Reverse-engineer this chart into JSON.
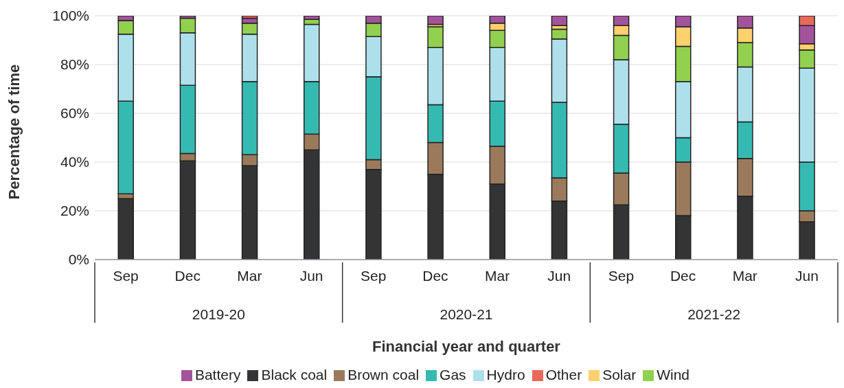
{
  "chart_data": {
    "type": "bar",
    "stacked": true,
    "xlabel": "Financial year and quarter",
    "ylabel": "Percentage of time",
    "categories": [
      "Sep",
      "Dec",
      "Mar",
      "Jun",
      "Sep",
      "Dec",
      "Mar",
      "Jun",
      "Sep",
      "Dec",
      "Mar",
      "Jun"
    ],
    "annotations": [
      "2019-20",
      "2020-21",
      "2021-22"
    ],
    "series": [
      {
        "name": "Black coal",
        "color": "#333436",
        "values": [
          25,
          40.5,
          38.5,
          45,
          37,
          35,
          31,
          24,
          22.5,
          18,
          26,
          15.5
        ]
      },
      {
        "name": "Brown coal",
        "color": "#9b7a5c",
        "values": [
          2,
          3,
          4.5,
          6.5,
          4,
          13,
          15.5,
          9.5,
          13,
          22,
          15.5,
          4.5
        ]
      },
      {
        "name": "Gas",
        "color": "#35bab2",
        "values": [
          38,
          28,
          30,
          21.5,
          34,
          15.5,
          18.5,
          31,
          20,
          10,
          15,
          20
        ]
      },
      {
        "name": "Hydro",
        "color": "#aee0ec",
        "values": [
          27.5,
          21.5,
          19.5,
          23.5,
          16.5,
          23.5,
          22,
          26,
          26.5,
          23,
          22.5,
          38.5
        ]
      },
      {
        "name": "Wind",
        "color": "#92d050",
        "values": [
          5.5,
          6,
          4.5,
          2,
          5.5,
          8.5,
          7,
          4,
          10,
          14.5,
          10,
          7.5
        ]
      },
      {
        "name": "Solar",
        "color": "#ffd06e",
        "values": [
          0,
          0,
          0,
          0,
          0,
          1,
          3,
          1.5,
          4,
          8,
          6,
          2.5
        ]
      },
      {
        "name": "Battery",
        "color": "#a3539b",
        "values": [
          2,
          1,
          2,
          1.5,
          3,
          3.5,
          3,
          4,
          4,
          4.5,
          5,
          7.5
        ]
      },
      {
        "name": "Other",
        "color": "#e8695a",
        "values": [
          0,
          0,
          1,
          0,
          0,
          0,
          0,
          0,
          0,
          0,
          0,
          4
        ]
      }
    ],
    "ylim": [
      0,
      100
    ],
    "yticks": [
      {
        "value": 0,
        "label": "0%"
      },
      {
        "value": 20,
        "label": "20%"
      },
      {
        "value": 40,
        "label": "40%"
      },
      {
        "value": 60,
        "label": "60%"
      },
      {
        "value": 80,
        "label": "80%"
      },
      {
        "value": 100,
        "label": "100%"
      }
    ],
    "grid": "y",
    "legend": "bottom"
  }
}
